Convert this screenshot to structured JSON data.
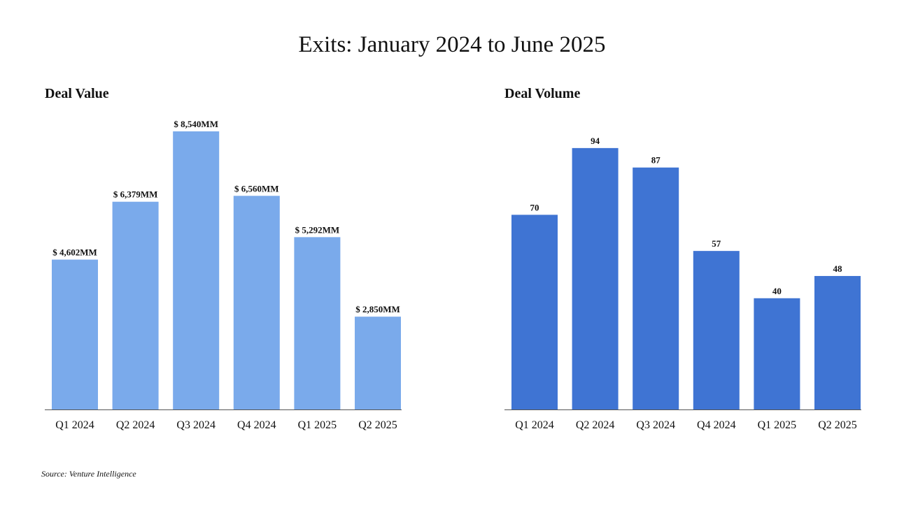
{
  "title": "Exits: January 2024 to June 2025",
  "source": "Source: Venture Intelligence",
  "colors": {
    "value_bar": "#7aaaeb",
    "volume_bar": "#3f74d3",
    "axis": "#555555",
    "text": "#111111"
  },
  "chart_data": [
    {
      "type": "bar",
      "title": "Deal Value",
      "categories": [
        "Q1 2024",
        "Q2 2024",
        "Q3 2024",
        "Q4 2024",
        "Q1 2025",
        "Q2 2025"
      ],
      "values": [
        4602,
        6379,
        8540,
        6560,
        5292,
        2850
      ],
      "data_labels": [
        "$ 4,602MM",
        "$ 6,379MM",
        "$ 8,540MM",
        "$ 6,560MM",
        "$ 5,292MM",
        "$ 2,850MM"
      ],
      "xlabel": "",
      "ylabel": "",
      "ylim": [
        0,
        8540
      ],
      "grid": false,
      "y_axis_visible": false
    },
    {
      "type": "bar",
      "title": "Deal Volume",
      "categories": [
        "Q1 2024",
        "Q2 2024",
        "Q3 2024",
        "Q4 2024",
        "Q1 2025",
        "Q2 2025"
      ],
      "values": [
        70,
        94,
        87,
        57,
        40,
        48
      ],
      "data_labels": [
        "70",
        "94",
        "87",
        "57",
        "40",
        "48"
      ],
      "xlabel": "",
      "ylabel": "",
      "ylim": [
        0,
        100
      ],
      "grid": false,
      "y_axis_visible": false
    }
  ]
}
